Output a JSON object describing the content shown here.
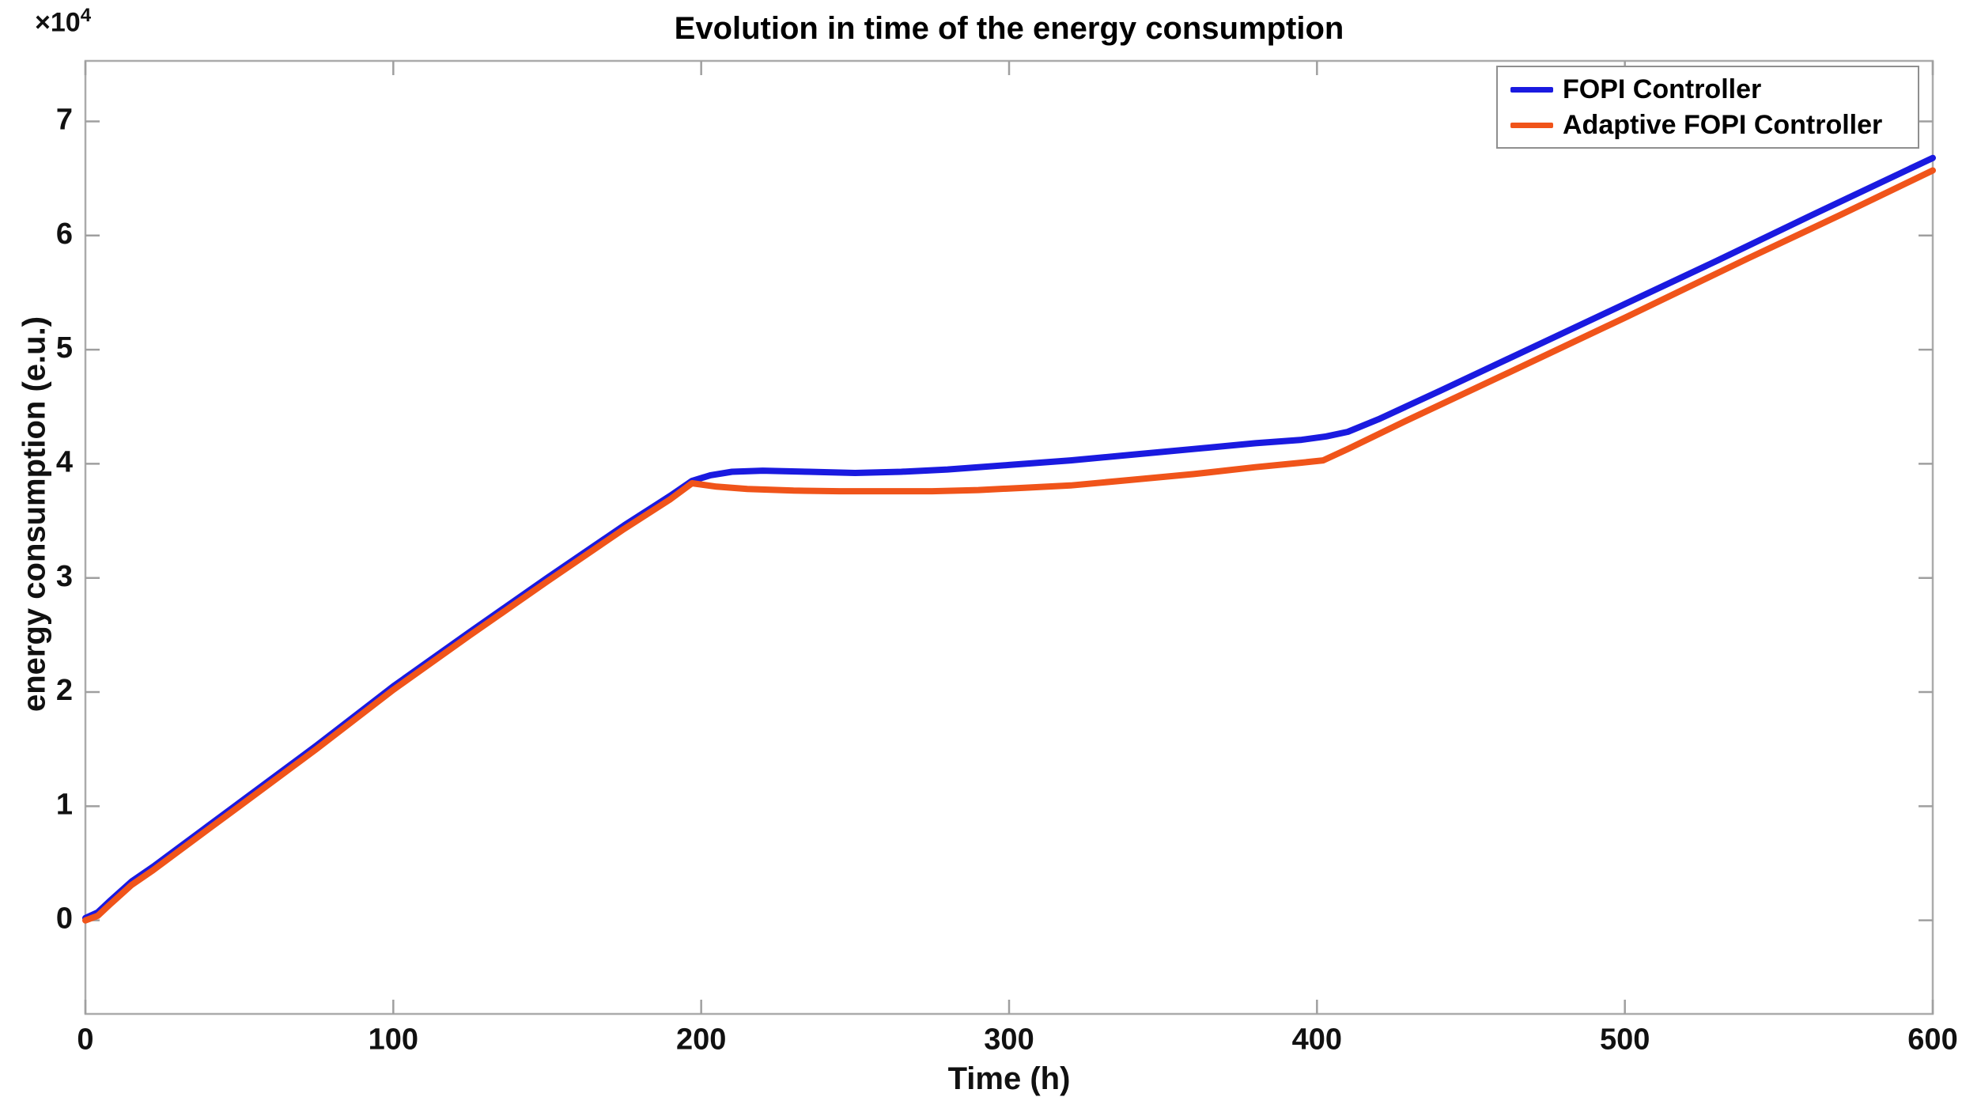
{
  "title": "Evolution in time of the energy consumption",
  "x_axis": {
    "label": "Time (h)",
    "tick_labels": [
      "0",
      "100",
      "200",
      "300",
      "400",
      "500",
      "600"
    ]
  },
  "y_axis": {
    "label": "energy consumption (e.u.)",
    "tick_labels": [
      "0",
      "1",
      "2",
      "3",
      "4",
      "5",
      "6",
      "7"
    ],
    "multiplier_base": "×10",
    "multiplier_exponent": "4"
  },
  "legend": {
    "items": [
      {
        "label": "FOPI Controller",
        "color": "#1a1ae0"
      },
      {
        "label": "Adaptive FOPI Controller",
        "color": "#f0541a"
      }
    ]
  },
  "colors": {
    "axis_box": "#ababab",
    "tick_mark": "#9f9f9f",
    "text": "#111111",
    "background": "#ffffff",
    "series_blue": "#1a1ae0",
    "series_orange": "#f0541a"
  },
  "chart_data": {
    "type": "line",
    "title": "Evolution in time of the energy consumption",
    "xlabel": "Time (h)",
    "ylabel": "energy consumption (e.u.)",
    "y_unit_multiplier": 10000,
    "xlim": [
      0,
      600
    ],
    "ylim": [
      -0.82,
      7.53
    ],
    "xticks": [
      0,
      100,
      200,
      300,
      400,
      500,
      600
    ],
    "yticks": [
      0,
      1,
      2,
      3,
      4,
      5,
      6,
      7
    ],
    "grid": false,
    "legend_position": "top-right",
    "series": [
      {
        "name": "FOPI Controller",
        "color": "#1a1ae0",
        "x": [
          0,
          4,
          8,
          15,
          22,
          30,
          40,
          50,
          75,
          100,
          125,
          150,
          175,
          190,
          197,
          203,
          210,
          220,
          235,
          250,
          265,
          280,
          300,
          320,
          340,
          360,
          380,
          395,
          403,
          410,
          420,
          440,
          470,
          500,
          530,
          560,
          600
        ],
        "y": [
          0.02,
          0.07,
          0.17,
          0.34,
          0.47,
          0.63,
          0.83,
          1.03,
          1.53,
          2.05,
          2.53,
          3.0,
          3.46,
          3.72,
          3.85,
          3.9,
          3.93,
          3.94,
          3.93,
          3.92,
          3.93,
          3.95,
          3.99,
          4.03,
          4.08,
          4.13,
          4.18,
          4.21,
          4.24,
          4.28,
          4.39,
          4.64,
          5.02,
          5.4,
          5.78,
          6.17,
          6.68
        ]
      },
      {
        "name": "Adaptive FOPI Controller",
        "color": "#f0541a",
        "x": [
          0,
          4,
          8,
          15,
          22,
          30,
          40,
          50,
          75,
          100,
          125,
          150,
          175,
          190,
          197,
          205,
          215,
          230,
          245,
          260,
          275,
          290,
          305,
          320,
          340,
          360,
          380,
          395,
          402,
          410,
          430,
          460,
          500,
          540,
          570,
          600
        ],
        "y": [
          0.0,
          0.04,
          0.14,
          0.31,
          0.44,
          0.6,
          0.8,
          1.0,
          1.5,
          2.02,
          2.5,
          2.97,
          3.43,
          3.69,
          3.83,
          3.8,
          3.78,
          3.765,
          3.76,
          3.76,
          3.76,
          3.77,
          3.79,
          3.81,
          3.86,
          3.91,
          3.97,
          4.01,
          4.03,
          4.13,
          4.39,
          4.77,
          5.28,
          5.8,
          6.18,
          6.57
        ]
      }
    ]
  }
}
